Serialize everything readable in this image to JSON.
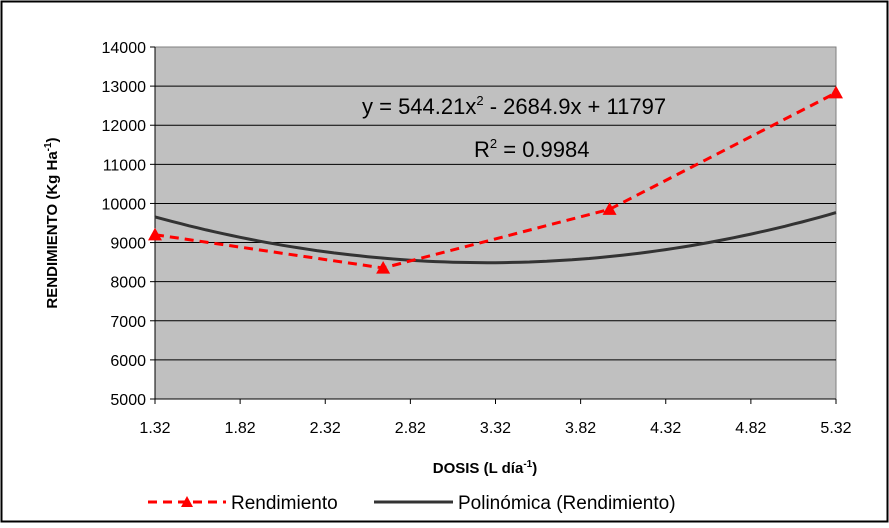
{
  "chart_data": {
    "type": "line",
    "title": "",
    "xlabel": "DOSIS (L día",
    "xlabel_sup": "-1",
    "xlabel_end": ")",
    "ylabel": "RENDIMIENTO (Kg Ha",
    "ylabel_sup": "-1",
    "ylabel_end": ")",
    "xlim": [
      1.32,
      5.32
    ],
    "ylim": [
      5000,
      14000
    ],
    "x_ticks": [
      "1.32",
      "1.82",
      "2.32",
      "2.82",
      "3.32",
      "3.82",
      "4.32",
      "4.82",
      "5.32"
    ],
    "y_ticks": [
      "5000",
      "6000",
      "7000",
      "8000",
      "9000",
      "10000",
      "11000",
      "12000",
      "13000",
      "14000"
    ],
    "grid": "horizontal",
    "plot_background": "#c0c0c0",
    "legend_position": "bottom",
    "series": [
      {
        "name": "Rendimiento",
        "style": "dashed",
        "marker": "triangle",
        "color": "#ff0000",
        "x": [
          1.32,
          2.66,
          3.99,
          5.32
        ],
        "y": [
          9200,
          8350,
          9850,
          12830
        ]
      },
      {
        "name": "Polinómica (Rendimiento)",
        "style": "solid",
        "color": "#333333",
        "coefficients": {
          "a": 544.21,
          "b": -2684.9,
          "c": 11797
        }
      }
    ],
    "annotations": {
      "equation_pre": "y = 544.21x",
      "equation_exp": "2",
      "equation_post": " - 2684.9x + 11797",
      "r2_pre": "R",
      "r2_exp": "2",
      "r2_post": " = 0.9984"
    }
  }
}
